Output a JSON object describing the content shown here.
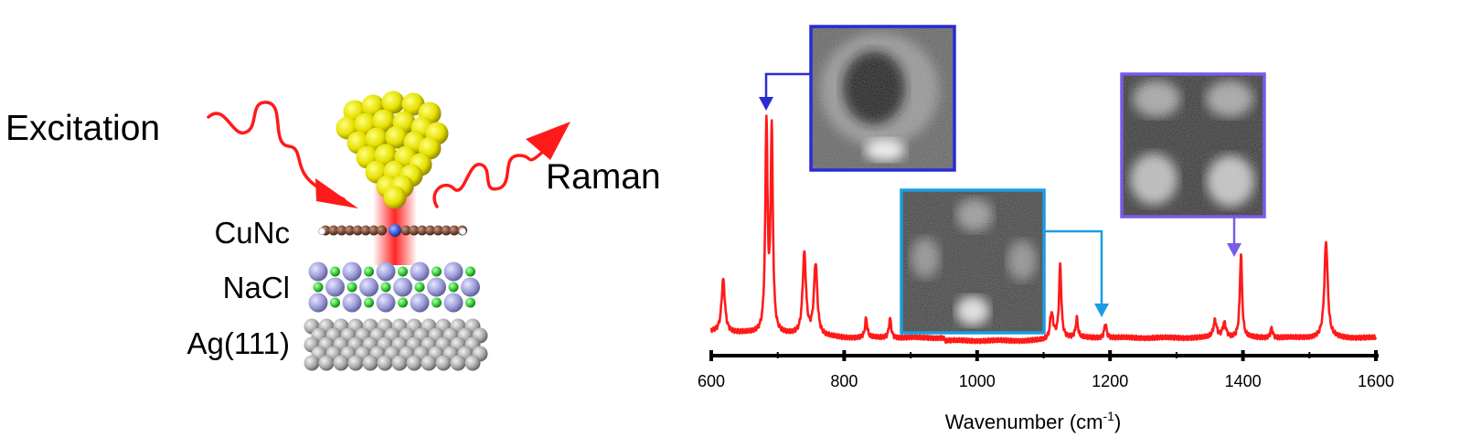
{
  "schematic": {
    "excitation_label": "Excitation",
    "raman_label": "Raman",
    "layers": [
      "CuNc",
      "NaCl",
      "Ag(111)"
    ],
    "colors": {
      "beam": "#ff1a1a",
      "tip_gold": "#e8e000",
      "na_ion": "#9b9bd8",
      "cl_ion": "#33cc33",
      "silver": "#a9a9a9",
      "molecule_carbon": "#7a4a36",
      "copper_center": "#3b5bd0"
    }
  },
  "chart_data": {
    "type": "line",
    "xlabel": "Wavenumber (cm",
    "xlabel_sup": "-1",
    "xlabel_close": ")",
    "xlim": [
      600,
      1600
    ],
    "ylim": [
      0,
      100
    ],
    "xticks": [
      600,
      800,
      1000,
      1200,
      1400,
      1600
    ],
    "y_axis_shown": false,
    "line_color": "#ff1a1a",
    "baseline": 4,
    "peaks": [
      {
        "x": 618,
        "height": 22,
        "width": 3
      },
      {
        "x": 683,
        "height": 87,
        "width": 2
      },
      {
        "x": 691,
        "height": 84,
        "width": 2
      },
      {
        "x": 740,
        "height": 34,
        "width": 3
      },
      {
        "x": 757,
        "height": 30,
        "width": 3
      },
      {
        "x": 833,
        "height": 8,
        "width": 2
      },
      {
        "x": 869,
        "height": 8,
        "width": 2
      },
      {
        "x": 1112,
        "height": 10,
        "width": 3
      },
      {
        "x": 1125,
        "height": 30,
        "width": 2
      },
      {
        "x": 1150,
        "height": 8,
        "width": 2
      },
      {
        "x": 1193,
        "height": 6,
        "width": 2
      },
      {
        "x": 1358,
        "height": 7,
        "width": 3
      },
      {
        "x": 1372,
        "height": 6,
        "width": 3
      },
      {
        "x": 1397,
        "height": 35,
        "width": 2
      },
      {
        "x": 1443,
        "height": 4,
        "width": 2
      },
      {
        "x": 1525,
        "height": 40,
        "width": 3
      }
    ],
    "insets": [
      {
        "name": "map-683",
        "peak_x": 683,
        "frame_color": "#2b2bd6",
        "pattern": "ring"
      },
      {
        "name": "map-1193",
        "peak_x": 1193,
        "frame_color": "#1a9de0",
        "pattern": "cross"
      },
      {
        "name": "map-1397",
        "peak_x": 1397,
        "frame_color": "#7a5ae8",
        "pattern": "four-lobe"
      }
    ]
  }
}
